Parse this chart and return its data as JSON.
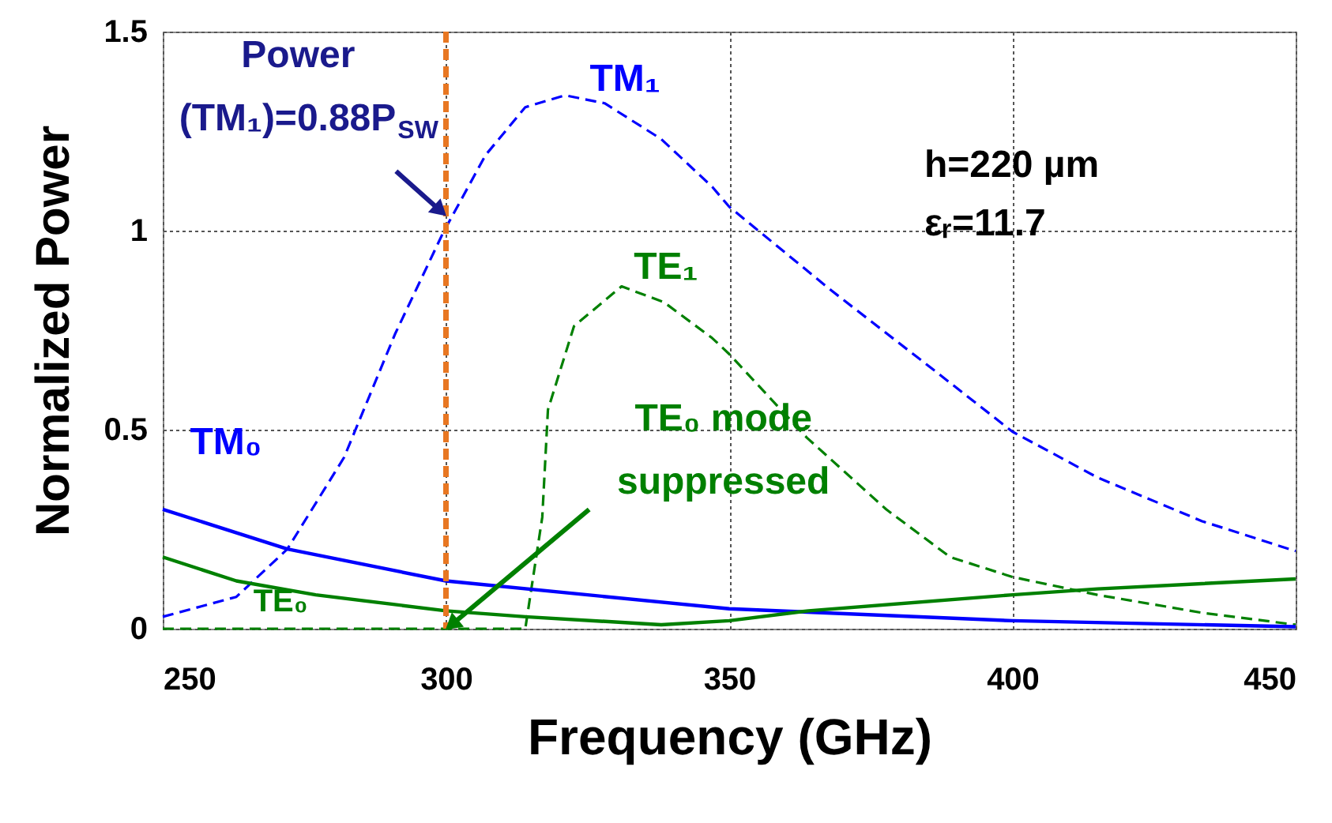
{
  "chart_data": {
    "type": "line",
    "xlabel": "Frequency (GHz)",
    "ylabel": "Normalized Power",
    "xlim": [
      250,
      450
    ],
    "xticks": [
      250,
      300,
      350,
      400,
      450
    ],
    "ylim": [
      0,
      1.5
    ],
    "yticks": [
      0,
      0.5,
      1,
      1.5
    ],
    "grid": true,
    "legend": false,
    "marker": "none",
    "series": [
      {
        "name": "TM₁",
        "color": "#0000ff",
        "line_style": "dashed",
        "x": [
          250,
          263,
          272,
          282,
          291,
          299.5,
          307,
          314,
          321,
          328,
          338,
          347,
          350,
          368,
          387,
          400,
          415,
          433.5,
          450
        ],
        "values": [
          0.03,
          0.08,
          0.2,
          0.43,
          0.74,
          0.995,
          1.19,
          1.31,
          1.34,
          1.32,
          1.23,
          1.11,
          1.06,
          0.85,
          0.64,
          0.495,
          0.38,
          0.27,
          0.195
        ]
      },
      {
        "name": "TE₁",
        "color": "#008000",
        "line_style": "dashed",
        "x": [
          250,
          314,
          317,
          318,
          322.6,
          331,
          338.5,
          347,
          350,
          363.7,
          377.7,
          389,
          400,
          415,
          433.5,
          450
        ],
        "values": [
          0,
          0,
          0.28,
          0.55,
          0.76,
          0.86,
          0.82,
          0.73,
          0.69,
          0.48,
          0.3,
          0.18,
          0.13,
          0.085,
          0.04,
          0.01
        ]
      },
      {
        "name": "TM₀",
        "color": "#0000ff",
        "line_style": "solid",
        "x": [
          250,
          272,
          300,
          325,
          350,
          400,
          450
        ],
        "values": [
          0.3,
          0.2,
          0.12,
          0.085,
          0.05,
          0.02,
          0.005
        ]
      },
      {
        "name": "TE₀",
        "color": "#008000",
        "line_style": "solid",
        "x": [
          250,
          263,
          277,
          300,
          314,
          338,
          350,
          364,
          400,
          415,
          450
        ],
        "values": [
          0.18,
          0.12,
          0.085,
          0.045,
          0.03,
          0.01,
          0.02,
          0.045,
          0.085,
          0.1,
          0.125
        ]
      }
    ],
    "ref_lines": [
      {
        "axis": "x",
        "value": 300,
        "color": "#e87722",
        "line_style": "dashed"
      }
    ],
    "annotations": [
      {
        "text": "Power\n(TM₁)=0.88P$_{SW}$",
        "x": 299,
        "y": 1.05
      },
      {
        "text": "TE₀ mode\nsuppressed",
        "x": 301,
        "y": 0.01
      },
      "h=220 µm",
      "εᵣ=11.7"
    ]
  }
}
